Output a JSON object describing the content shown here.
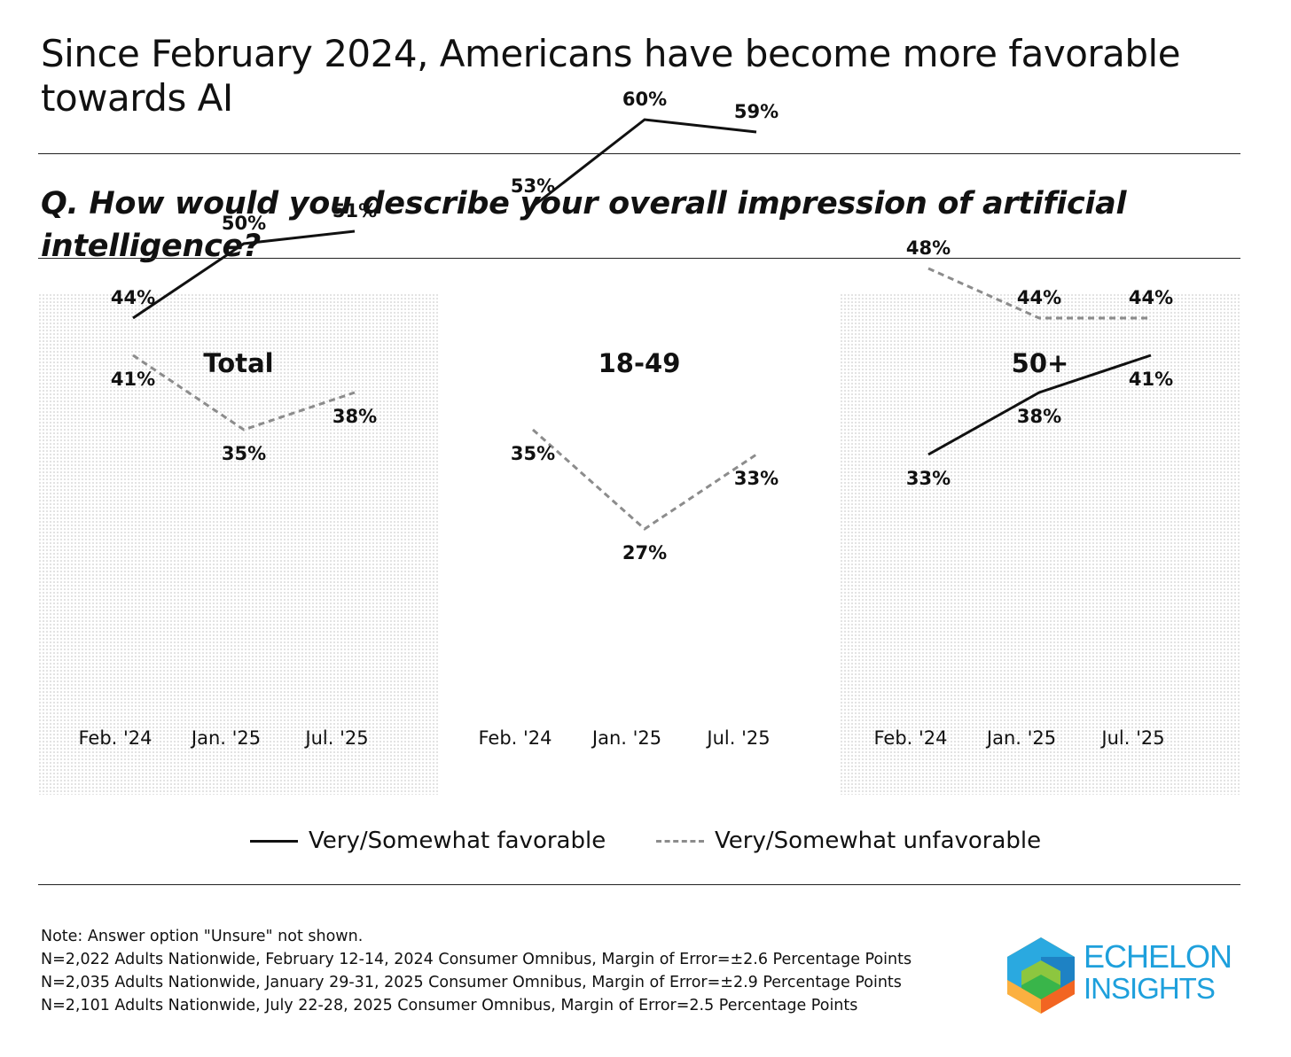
{
  "title": "Since February 2024, Americans have become more favorable towards AI",
  "question": "Q. How would you describe your overall impression of artificial intelligence?",
  "colors": {
    "favorable": "#111111",
    "unfavorable": "#8c8c8c",
    "panel_dot": "#bdbdbd"
  },
  "chart_data": [
    {
      "type": "line",
      "title": "Total",
      "categories": [
        "Feb. '24",
        "Jan. '25",
        "Jul. '25"
      ],
      "series": [
        {
          "name": "Very/Somewhat favorable",
          "values": [
            44,
            50,
            51
          ],
          "labels": [
            "44%",
            "50%",
            "51%"
          ]
        },
        {
          "name": "Very/Somewhat unfavorable",
          "values": [
            41,
            35,
            38
          ],
          "labels": [
            "41%",
            "35%",
            "38%"
          ]
        }
      ],
      "ylim": [
        20,
        70
      ]
    },
    {
      "type": "line",
      "title": "18-49",
      "categories": [
        "Feb. '24",
        "Jan. '25",
        "Jul. '25"
      ],
      "series": [
        {
          "name": "Very/Somewhat favorable",
          "values": [
            53,
            60,
            59
          ],
          "labels": [
            "53%",
            "60%",
            "59%"
          ]
        },
        {
          "name": "Very/Somewhat unfavorable",
          "values": [
            35,
            27,
            33
          ],
          "labels": [
            "35%",
            "27%",
            "33%"
          ]
        }
      ],
      "ylim": [
        20,
        70
      ]
    },
    {
      "type": "line",
      "title": "50+",
      "categories": [
        "Feb. '24",
        "Jan. '25",
        "Jul. '25"
      ],
      "series": [
        {
          "name": "Very/Somewhat favorable",
          "values": [
            33,
            38,
            41
          ],
          "labels": [
            "33%",
            "38%",
            "41%"
          ]
        },
        {
          "name": "Very/Somewhat unfavorable",
          "values": [
            48,
            44,
            44
          ],
          "labels": [
            "48%",
            "44%",
            "44%"
          ]
        }
      ],
      "ylim": [
        20,
        70
      ]
    }
  ],
  "legend": {
    "favorable": "Very/Somewhat favorable",
    "unfavorable": "Very/Somewhat unfavorable"
  },
  "notes": [
    "Note: Answer option \"Unsure\" not shown.",
    "N=2,022 Adults Nationwide, February 12-14, 2024 Consumer Omnibus, Margin of Error=±2.6 Percentage Points",
    "N=2,035 Adults Nationwide, January 29-31, 2025 Consumer Omnibus, Margin of Error=±2.9 Percentage Points",
    "N=2,101 Adults Nationwide, July 22-28, 2025 Consumer Omnibus, Margin of Error=2.5 Percentage Points"
  ],
  "logo": {
    "line1": "ECHELON",
    "line2": "INSIGHTS"
  }
}
